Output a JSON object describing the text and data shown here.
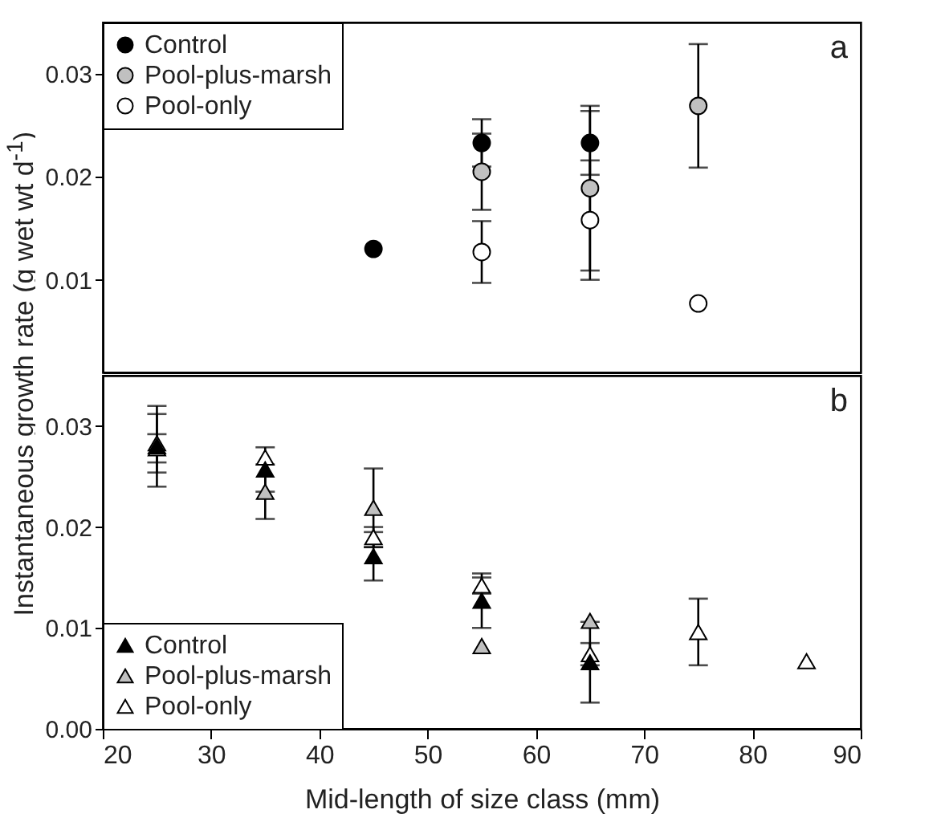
{
  "chart_data": [
    {
      "type": "scatter",
      "ylabel": "Instantaneous growth rate (g wet wt d$^{-1}$)",
      "annotations": [
        "a"
      ],
      "marker": "circle",
      "legend": "top left",
      "grid": false,
      "tick_labels": "y",
      "x": [
        45,
        55,
        65,
        75
      ],
      "xlim": [
        20,
        90
      ],
      "xticks": [
        20,
        30,
        40,
        50,
        60,
        70,
        80,
        90
      ],
      "ylim": [
        0.001,
        0.035
      ],
      "yticks": [
        0.01,
        0.02,
        0.03
      ],
      "series": [
        {
          "name": "Control",
          "color": "#000000",
          "values": [
            0.013,
            0.0233,
            0.0233,
            null
          ],
          "errors": [
            null,
            0.0023,
            0.0031,
            null
          ]
        },
        {
          "name": "Pool-plus-marsh",
          "color": "#c0c0c0",
          "values": [
            null,
            0.0205,
            0.0189,
            0.0269
          ],
          "errors": [
            null,
            0.0037,
            0.008,
            0.006
          ]
        },
        {
          "name": "Pool-only",
          "color": "#ffffff",
          "values": [
            null,
            0.0127,
            0.0158,
            0.0077
          ],
          "errors": [
            null,
            0.003,
            0.0058,
            null
          ]
        }
      ]
    },
    {
      "type": "scatter",
      "xlabel": "Mid-length of size class (mm)",
      "annotations": [
        "b"
      ],
      "marker": "triangle",
      "legend": "bottom left",
      "grid": false,
      "x": [
        25,
        35,
        45,
        55,
        65,
        75,
        85
      ],
      "xlim": [
        20,
        90
      ],
      "xticks": [
        20,
        30,
        40,
        50,
        60,
        70,
        80,
        90
      ],
      "ylim": [
        0,
        0.035
      ],
      "yticks": [
        {
          "value": 0,
          "label": "0.00"
        },
        0.01,
        0.02,
        0.03
      ],
      "series": [
        {
          "name": "Control",
          "color": "#000000",
          "values": [
            0.028,
            0.0257,
            0.0171,
            0.0127,
            0.0066,
            null,
            null
          ],
          "errors": [
            0.004,
            0.0022,
            0.0024,
            0.0027,
            0.004,
            null,
            null
          ]
        },
        {
          "name": "Pool-plus-marsh",
          "color": "#c0c0c0",
          "values": [
            0.0283,
            0.0235,
            0.0219,
            0.0082,
            0.0107,
            null,
            null
          ],
          "errors": [
            0.0029,
            0.0027,
            0.0039,
            null,
            null,
            null,
            null
          ]
        },
        {
          "name": "Pool-only",
          "color": "#ffffff",
          "values": [
            0.0278,
            0.0269,
            0.019,
            0.0142,
            0.0074,
            0.0096,
            0.0067
          ],
          "errors": [
            0.0014,
            null,
            0.001,
            0.0008,
            0.0011,
            0.0033,
            null
          ]
        }
      ]
    }
  ]
}
